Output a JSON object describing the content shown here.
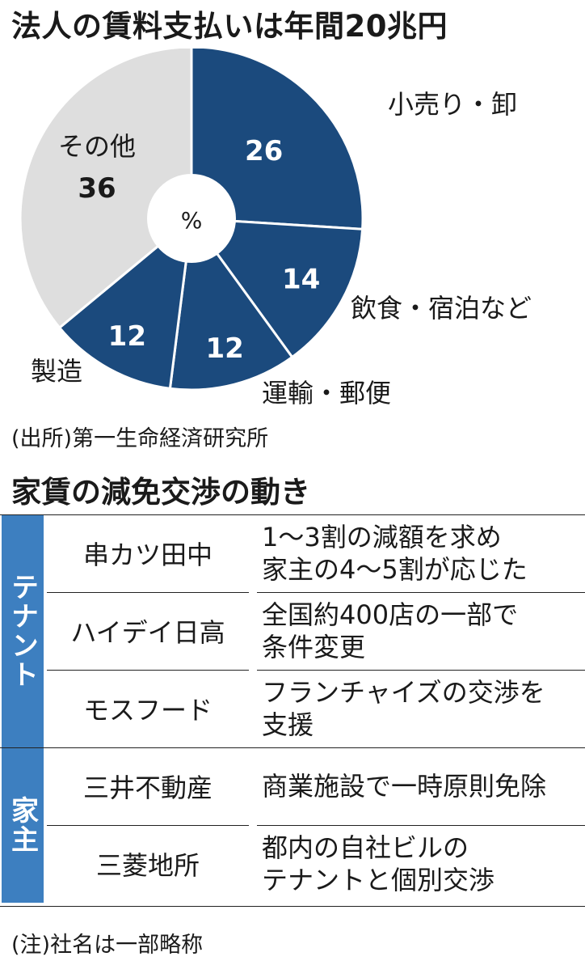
{
  "title": "法人の賃料支払いは年間20兆円",
  "chart_data": {
    "type": "pie",
    "unit": "%",
    "slices": [
      {
        "label": "小売り・卸",
        "value": 26,
        "color": "#1b4a7d"
      },
      {
        "label": "飲食・宿泊など",
        "value": 14,
        "color": "#1b4a7d"
      },
      {
        "label": "運輸・郵便",
        "value": 12,
        "color": "#1b4a7d"
      },
      {
        "label": "製造",
        "value": 12,
        "color": "#1b4a7d"
      },
      {
        "label": "その他",
        "value": 36,
        "color": "#dedede"
      }
    ]
  },
  "source": "(出所)第一生命経済研究所",
  "table_title": "家賃の減免交渉の動き",
  "groups": [
    {
      "label": "テナント",
      "rows": [
        {
          "company": "串カツ田中",
          "action": "1〜3割の減額を求め\n家主の4〜5割が応じた"
        },
        {
          "company": "ハイデイ日高",
          "action": "全国約400店の一部で\n条件変更"
        },
        {
          "company": "モスフード",
          "action": "フランチャイズの交渉を\n支援"
        }
      ]
    },
    {
      "label": "家主",
      "rows": [
        {
          "company": "三井不動産",
          "action": "商業施設で一時原則免除"
        },
        {
          "company": "三菱地所",
          "action": "都内の自社ビルの\nテナントと個別交渉"
        }
      ]
    }
  ],
  "note": "(注)社名は一部略称"
}
